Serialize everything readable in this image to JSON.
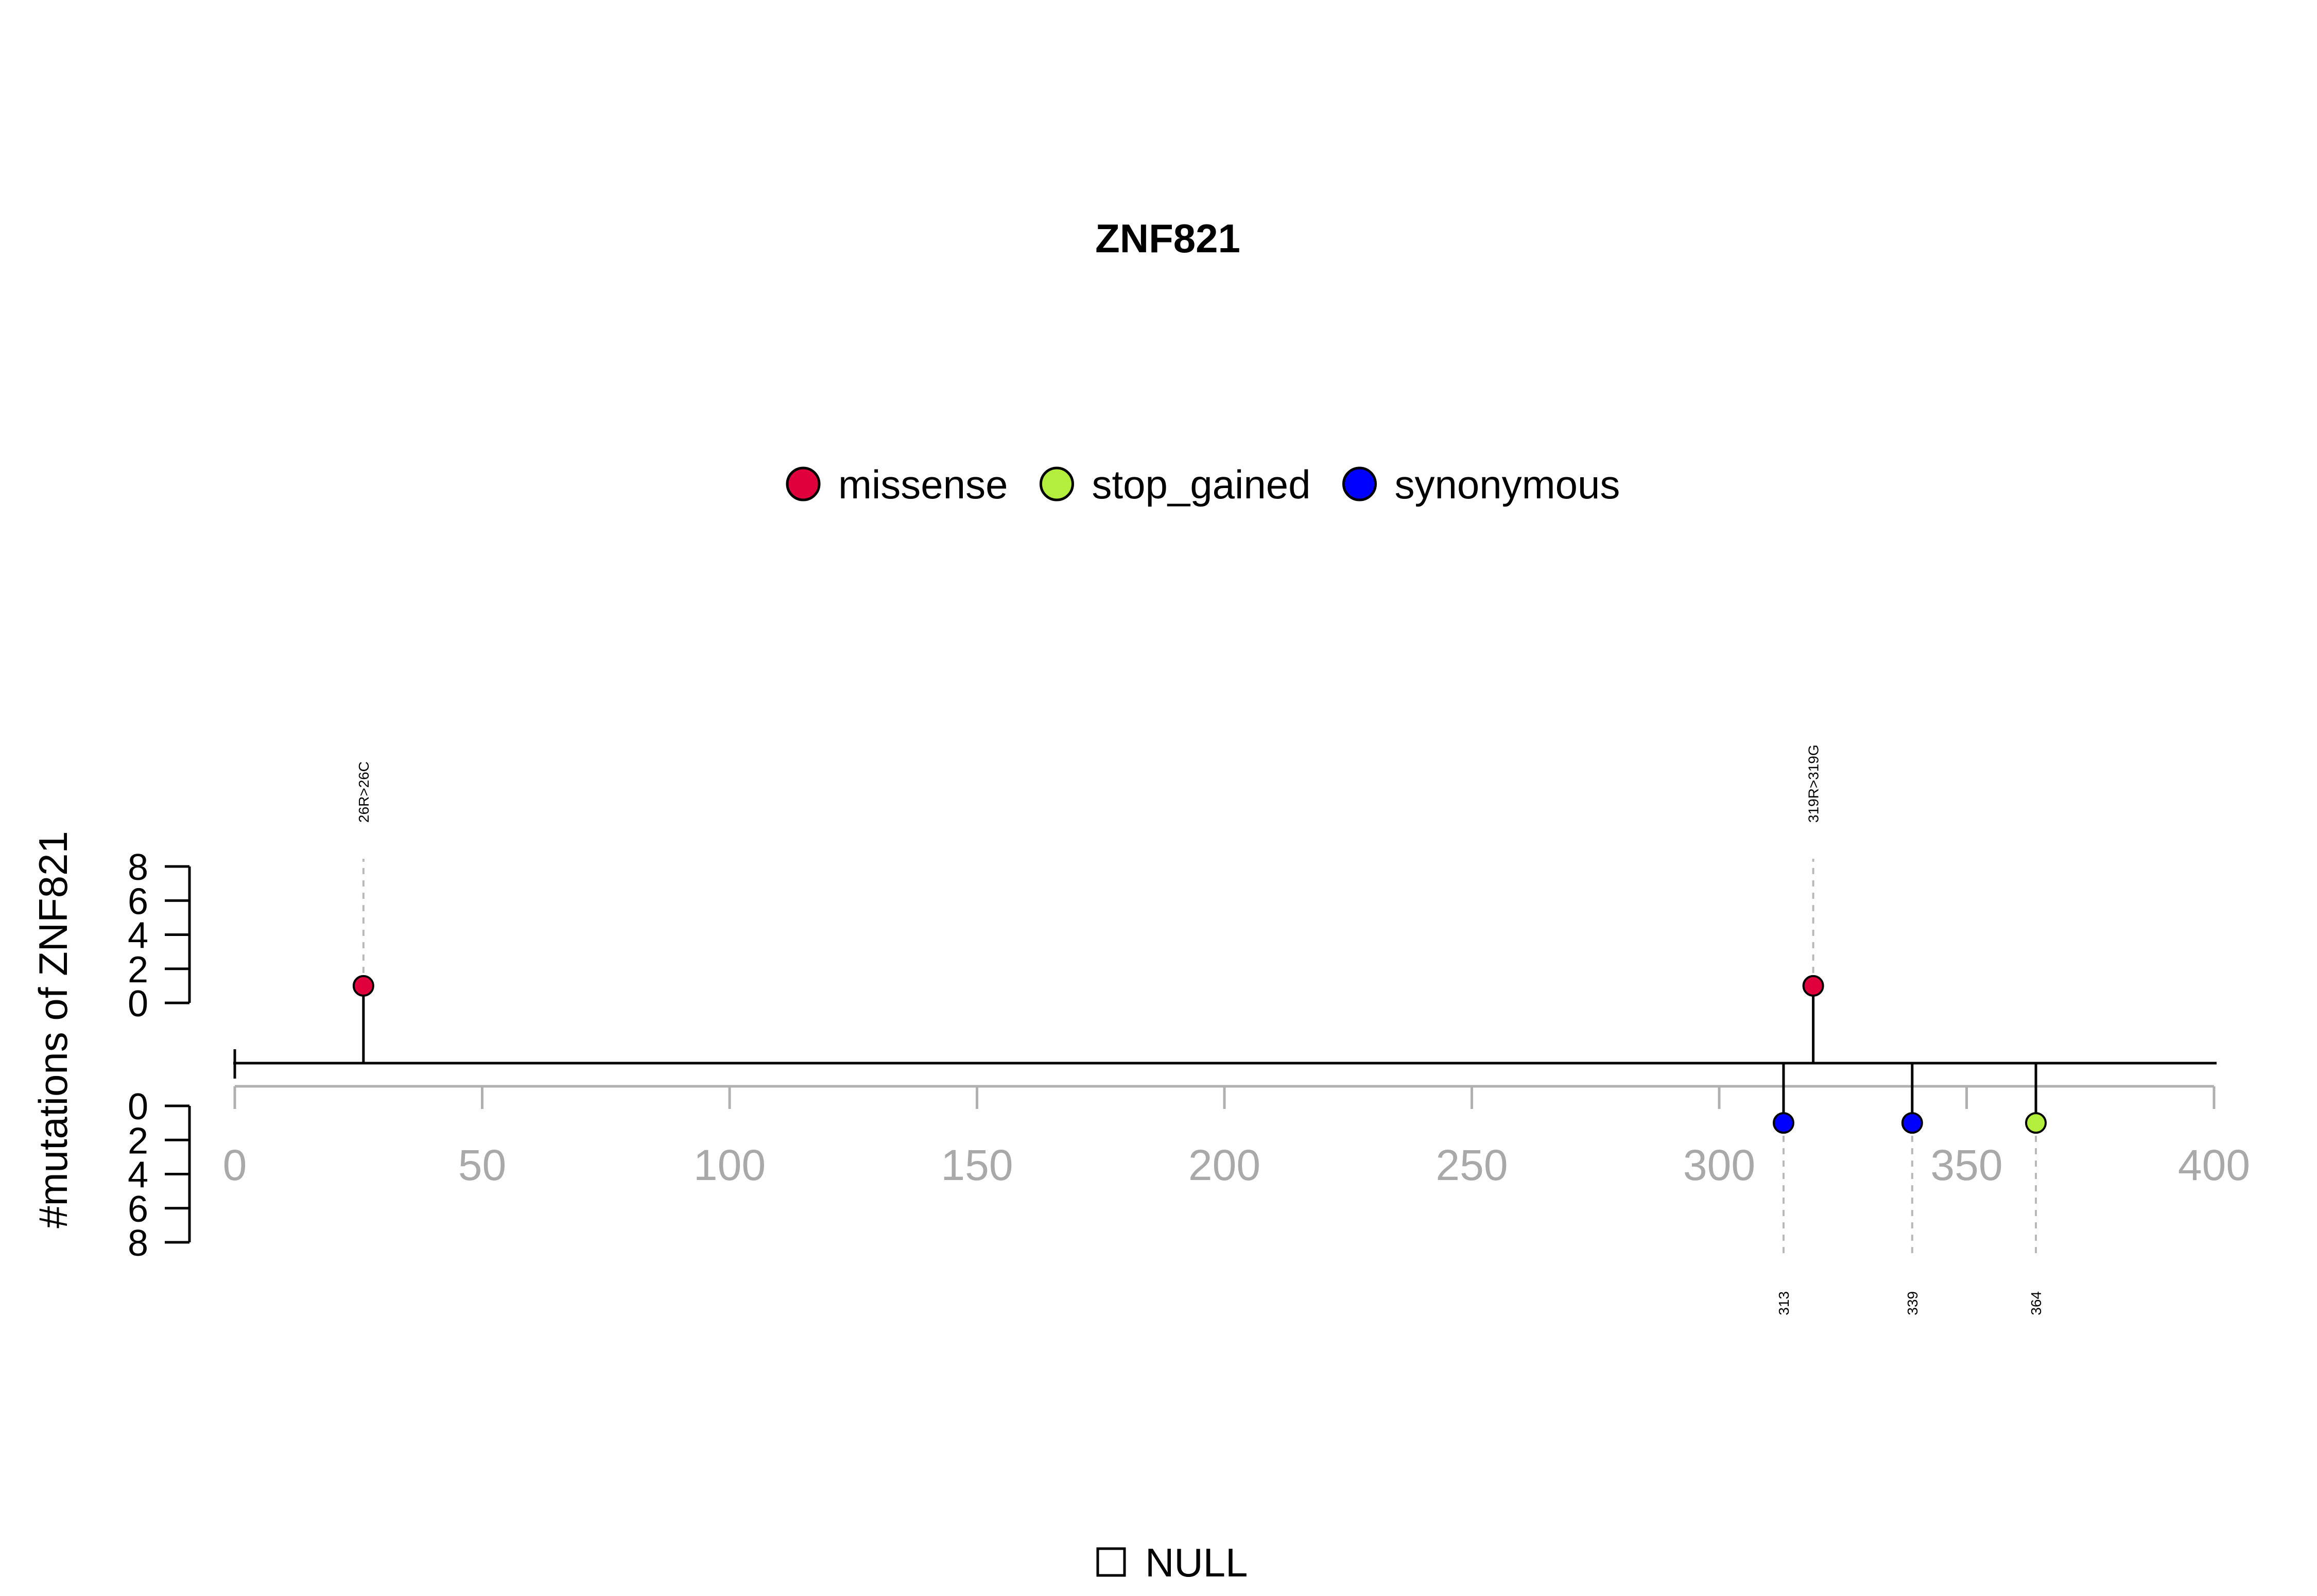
{
  "chart_data": {
    "type": "lollipop",
    "title": "ZNF821",
    "ylabel": "#mutations of ZNF821",
    "xlim": [
      0,
      400
    ],
    "x_ticks": [
      "0",
      "50",
      "100",
      "150",
      "200",
      "250",
      "300",
      "350",
      "400"
    ],
    "x_tick_values": [
      0,
      50,
      100,
      150,
      200,
      250,
      300,
      350,
      400
    ],
    "y_ticks_top": [
      "0",
      "2",
      "4",
      "6",
      "8"
    ],
    "y_ticks_bottom": [
      "0",
      "2",
      "4",
      "6",
      "8"
    ],
    "y_tick_values": [
      0,
      2,
      4,
      6,
      8
    ],
    "ylim": [
      0,
      8
    ],
    "legend": [
      {
        "name": "missense",
        "color": "#e0003c"
      },
      {
        "name": "stop_gained",
        "color": "#b4ee3c"
      },
      {
        "name": "synonymous",
        "color": "#0000ff"
      }
    ],
    "series": [
      {
        "name": "missense",
        "color": "#e0003c",
        "points": [
          {
            "position": 26,
            "count": 1,
            "side": "top",
            "label": "26R>26C"
          },
          {
            "position": 319,
            "count": 1,
            "side": "top",
            "label": "319R>319G"
          }
        ]
      },
      {
        "name": "synonymous",
        "color": "#0000ff",
        "points": [
          {
            "position": 313,
            "count": 1,
            "side": "bottom",
            "label": "313"
          },
          {
            "position": 339,
            "count": 1,
            "side": "bottom",
            "label": "339"
          }
        ]
      },
      {
        "name": "stop_gained",
        "color": "#b4ee3c",
        "points": [
          {
            "position": 364,
            "count": 1,
            "side": "bottom",
            "label": "364"
          }
        ]
      }
    ],
    "bottom_legend": {
      "label": "NULL"
    }
  }
}
